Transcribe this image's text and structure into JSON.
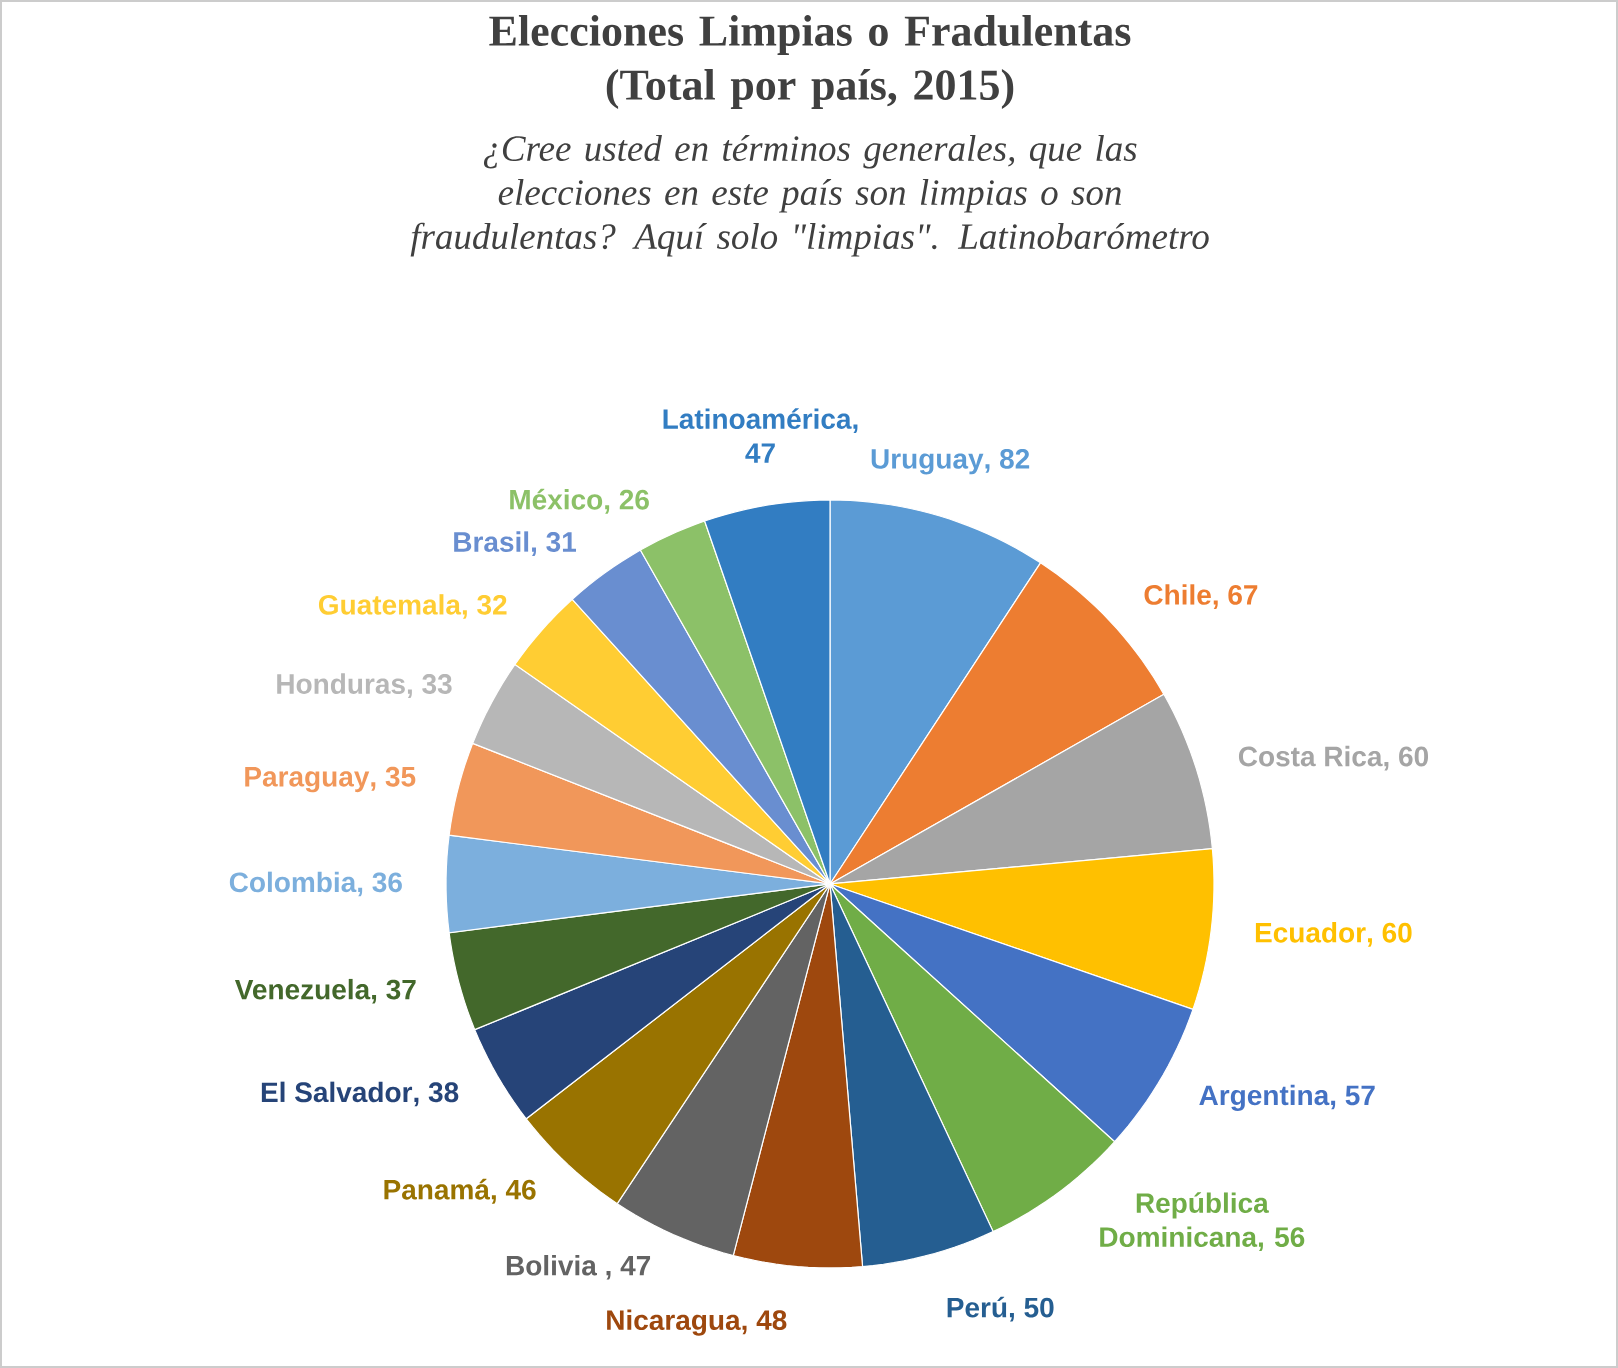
{
  "chart_data": {
    "type": "pie",
    "title": "Elecciones Limpias o Fradulentas (Total por país, 2015)",
    "subtitle": "¿Cree usted en términos generales, que las elecciones en este país son limpias o son fraudulentas? Aquí solo \"limpias\". Latinobarómetro",
    "categories": [
      "Uruguay",
      "Chile",
      "Costa Rica",
      "Ecuador",
      "Argentina",
      "República Dominicana",
      "Perú",
      "Nicaragua",
      "Bolivia",
      "Panamá",
      "El Salvador",
      "Venezuela",
      "Colombia",
      "Paraguay",
      "Honduras",
      "Guatemala",
      "Brasil",
      "México",
      "Latinoamérica"
    ],
    "values": [
      82,
      67,
      60,
      60,
      57,
      56,
      50,
      48,
      47,
      46,
      38,
      37,
      36,
      35,
      33,
      32,
      31,
      26,
      47
    ],
    "colors": [
      "#5b9bd5",
      "#ed7d31",
      "#a5a5a5",
      "#ffc000",
      "#4472c4",
      "#70ad47",
      "#255e91",
      "#9e480e",
      "#636363",
      "#997300",
      "#264478",
      "#43682b",
      "#7cafdd",
      "#f1975a",
      "#b7b7b7",
      "#ffcd33",
      "#698ed0",
      "#8cc168",
      "#327dc2"
    ],
    "value_labels": [
      ", 82",
      ", 67",
      ", 60",
      ", 60",
      ", 57",
      ", 56",
      ", 50",
      ", 48",
      " , 47",
      ", 46",
      ", 38",
      ", 37",
      ", 36",
      ", 35",
      ", 33",
      ", 32",
      ", 31",
      ", 26",
      ", 47"
    ]
  }
}
